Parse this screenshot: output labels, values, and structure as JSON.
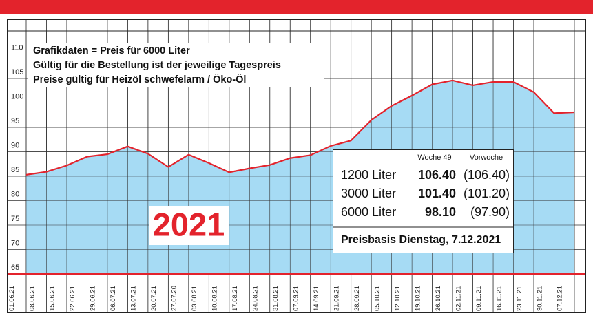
{
  "chart_data": {
    "type": "area",
    "annotations": [
      "Grafikdaten = Preis für 6000 Liter",
      "Gültig für die Bestellung ist der jeweilige Tagespreis",
      "Preise gültig für Heizöl schwefelarm / Öko-Öl"
    ],
    "year_label": "2021",
    "categories": [
      "01.06.21",
      "08.06.21",
      "15.06.21",
      "22.06.21",
      "29.06.21",
      "06.07.21",
      "13.07.21",
      "20.07.21",
      "27.07.20",
      "03.08.21",
      "10.08.21",
      "17.08.21",
      "24.08.21",
      "31.08.21",
      "07.09.21",
      "14.09.21",
      "21.09.21",
      "28.09.21",
      "05.10.21",
      "12.10.21",
      "19.10.21",
      "26.10.21",
      "02.11.21",
      "09.11.21",
      "16.11.21",
      "23.11.21",
      "30.11.21",
      "07.12.21"
    ],
    "values": [
      85.3,
      85.9,
      87.2,
      89.0,
      89.5,
      91.1,
      89.6,
      86.9,
      89.4,
      87.7,
      85.8,
      86.6,
      87.3,
      88.7,
      89.3,
      91.2,
      92.3,
      96.5,
      99.4,
      101.5,
      103.8,
      104.6,
      103.6,
      104.3,
      104.3,
      102.2,
      97.9,
      98.1
    ],
    "color": "#a6dbf4",
    "line_color": "#e3232c",
    "ylim": [
      65,
      115
    ],
    "yticks": [
      65,
      70,
      75,
      80,
      85,
      90,
      95,
      100,
      105,
      110
    ],
    "grid": true,
    "price_table": {
      "headers": [
        "Woche 49",
        "Vorwoche"
      ],
      "rows": [
        {
          "label": "1200 Liter",
          "current": "106.40",
          "previous": "(106.40)"
        },
        {
          "label": "3000 Liter",
          "current": "101.40",
          "previous": "(101.20)"
        },
        {
          "label": "6000 Liter",
          "current": "98.10",
          "previous": "(97.90)"
        }
      ],
      "footer": "Preisbasis Dienstag, 7.12.2021"
    }
  }
}
